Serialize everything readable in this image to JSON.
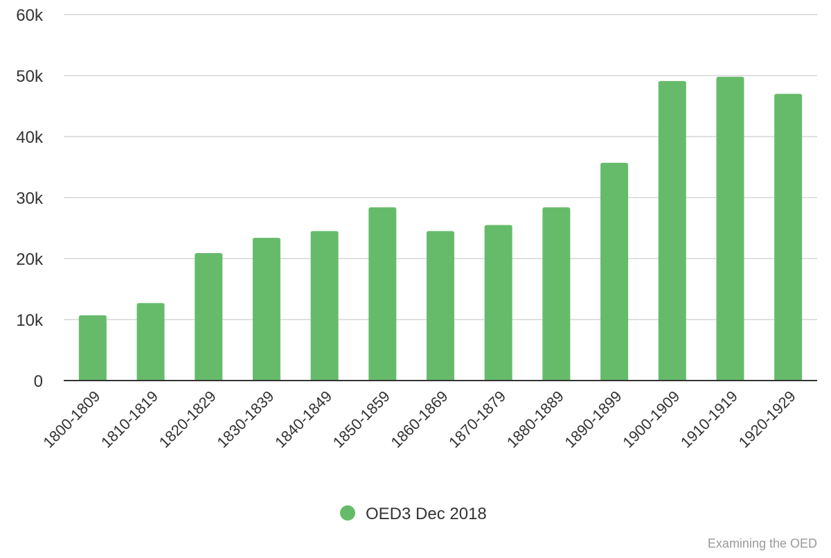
{
  "chart_data": {
    "type": "bar",
    "title": "",
    "xlabel": "",
    "ylabel": "",
    "ylim": [
      0,
      60000
    ],
    "yticks": [
      0,
      10000,
      20000,
      30000,
      40000,
      50000,
      60000
    ],
    "ytick_labels": [
      "0",
      "10k",
      "20k",
      "30k",
      "40k",
      "50k",
      "60k"
    ],
    "grid": true,
    "legend_position": "bottom-center",
    "categories": [
      "1800-1809",
      "1810-1819",
      "1820-1829",
      "1830-1839",
      "1840-1849",
      "1850-1859",
      "1860-1869",
      "1870-1879",
      "1880-1889",
      "1890-1899",
      "1900-1909",
      "1910-1919",
      "1920-1929"
    ],
    "series": [
      {
        "name": "OED3 Dec 2018",
        "color": "#66bb6a",
        "values": [
          10700,
          12700,
          20900,
          23400,
          24500,
          28400,
          24500,
          25500,
          28400,
          35700,
          49100,
          49800,
          47000
        ]
      }
    ]
  },
  "credit": "Examining the OED"
}
